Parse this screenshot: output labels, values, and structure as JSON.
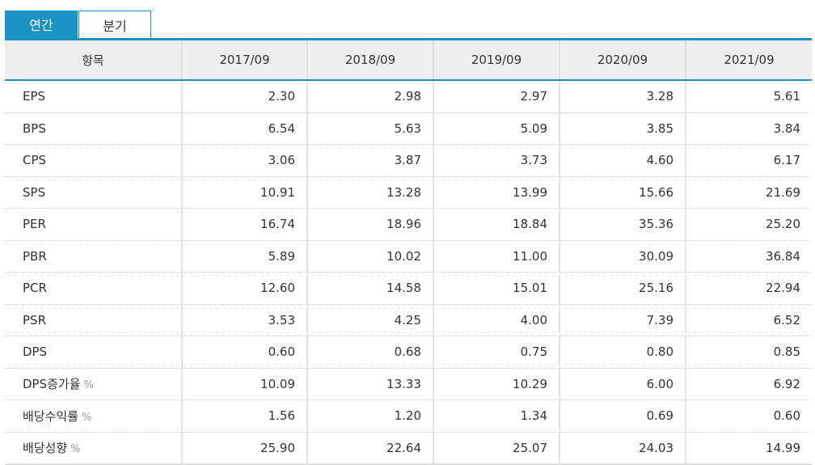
{
  "tabs": [
    {
      "label": "연간",
      "active": true
    },
    {
      "label": "분기",
      "active": false
    }
  ],
  "colors": {
    "accent": "#1a92c4",
    "header_bg": "#eeeeee"
  },
  "table": {
    "headers": [
      "항목",
      "2017/09",
      "2018/09",
      "2019/09",
      "2020/09",
      "2021/09"
    ],
    "rows": [
      {
        "label": "EPS",
        "unit": "",
        "values": [
          "2.30",
          "2.98",
          "2.97",
          "3.28",
          "5.61"
        ]
      },
      {
        "label": "BPS",
        "unit": "",
        "values": [
          "6.54",
          "5.63",
          "5.09",
          "3.85",
          "3.84"
        ]
      },
      {
        "label": "CPS",
        "unit": "",
        "values": [
          "3.06",
          "3.87",
          "3.73",
          "4.60",
          "6.17"
        ]
      },
      {
        "label": "SPS",
        "unit": "",
        "values": [
          "10.91",
          "13.28",
          "13.99",
          "15.66",
          "21.69"
        ]
      },
      {
        "label": "PER",
        "unit": "",
        "values": [
          "16.74",
          "18.96",
          "18.84",
          "35.36",
          "25.20"
        ]
      },
      {
        "label": "PBR",
        "unit": "",
        "values": [
          "5.89",
          "10.02",
          "11.00",
          "30.09",
          "36.84"
        ]
      },
      {
        "label": "PCR",
        "unit": "",
        "values": [
          "12.60",
          "14.58",
          "15.01",
          "25.16",
          "22.94"
        ]
      },
      {
        "label": "PSR",
        "unit": "",
        "values": [
          "3.53",
          "4.25",
          "4.00",
          "7.39",
          "6.52"
        ]
      },
      {
        "label": "DPS",
        "unit": "",
        "values": [
          "0.60",
          "0.68",
          "0.75",
          "0.80",
          "0.85"
        ]
      },
      {
        "label": "DPS증가율",
        "unit": "%",
        "values": [
          "10.09",
          "13.33",
          "10.29",
          "6.00",
          "6.92"
        ]
      },
      {
        "label": "배당수익률",
        "unit": "%",
        "values": [
          "1.56",
          "1.20",
          "1.34",
          "0.69",
          "0.60"
        ]
      },
      {
        "label": "배당성향",
        "unit": "%",
        "values": [
          "25.90",
          "22.64",
          "25.07",
          "24.03",
          "14.99"
        ]
      }
    ]
  }
}
